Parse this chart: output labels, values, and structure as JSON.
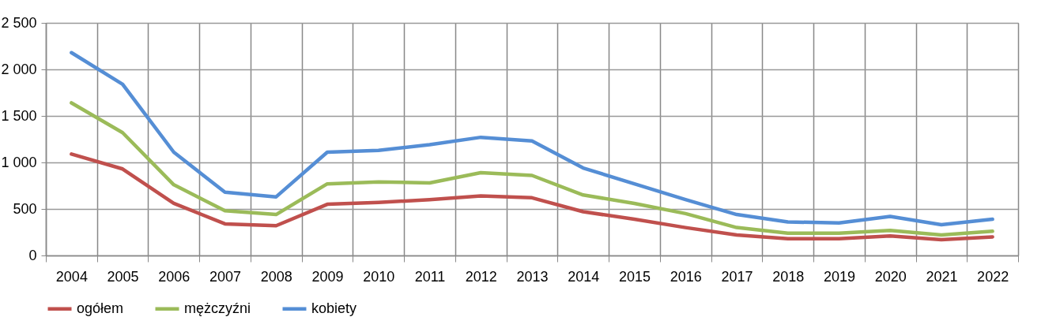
{
  "chart_data": {
    "type": "line",
    "categories": [
      "2004",
      "2005",
      "2006",
      "2007",
      "2008",
      "2009",
      "2010",
      "2011",
      "2012",
      "2013",
      "2014",
      "2015",
      "2016",
      "2017",
      "2018",
      "2019",
      "2020",
      "2021",
      "2022"
    ],
    "series": [
      {
        "name": "ogółem",
        "color": "#c0504d",
        "values": [
          1090,
          930,
          560,
          340,
          320,
          550,
          570,
          600,
          640,
          620,
          470,
          390,
          300,
          220,
          180,
          180,
          210,
          170,
          200
        ]
      },
      {
        "name": "mężczyźni",
        "color": "#9bbb59",
        "values": [
          1640,
          1320,
          760,
          480,
          440,
          770,
          790,
          780,
          890,
          860,
          650,
          560,
          450,
          300,
          240,
          240,
          270,
          220,
          260
        ]
      },
      {
        "name": "kobiety",
        "color": "#558ed5",
        "values": [
          2180,
          1840,
          1110,
          680,
          630,
          1110,
          1130,
          1190,
          1270,
          1230,
          940,
          770,
          600,
          440,
          360,
          350,
          420,
          330,
          390
        ]
      }
    ],
    "ylim": [
      0,
      2500
    ],
    "yticks": [
      0,
      {
        "value": 500,
        "label": "500"
      },
      {
        "value": 1000,
        "label": "1 000"
      },
      {
        "value": 1500,
        "label": "1 500"
      },
      {
        "value": 2000,
        "label": "2 000"
      },
      {
        "value": 2500,
        "label": "2 500"
      }
    ],
    "grid": true,
    "legend": "bottom",
    "marker": "none",
    "line_style": "solid"
  }
}
